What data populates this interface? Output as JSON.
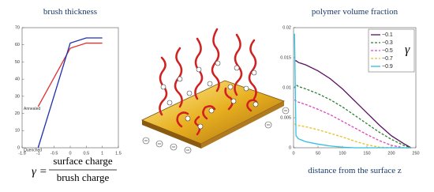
{
  "chart_data": [
    {
      "type": "line",
      "title": "brush thickness",
      "x": [
        -1,
        0,
        0.5,
        1
      ],
      "series": [
        {
          "name": "Annealed",
          "color": "#e03030",
          "values": [
            24,
            58,
            61,
            61
          ]
        },
        {
          "name": "Quenched",
          "color": "#2030b0",
          "values": [
            0,
            61,
            64,
            64
          ]
        }
      ],
      "xlim": [
        -1.5,
        1.5
      ],
      "xticks": [
        -1.5,
        -1,
        -0.5,
        0,
        0.5,
        1,
        1.5
      ],
      "ylim": [
        0,
        70
      ],
      "yticks": [
        0,
        10,
        20,
        30,
        40,
        50,
        60,
        70
      ]
    },
    {
      "type": "line",
      "title": "polymer volume fraction",
      "x_label": "distance from the surface z",
      "x": [
        2,
        5,
        10,
        25,
        50,
        75,
        100,
        125,
        150,
        175,
        200,
        225,
        240
      ],
      "series": [
        {
          "name": "−0.1",
          "color": "#5a1060",
          "style": "solid",
          "values": [
            0.0145,
            0.0145,
            0.0142,
            0.0138,
            0.0128,
            0.0115,
            0.0098,
            0.0078,
            0.0058,
            0.0038,
            0.002,
            0.0007,
            0
          ]
        },
        {
          "name": "−0.3",
          "color": "#2a8030",
          "style": "dashed",
          "values": [
            0.01,
            0.0105,
            0.0102,
            0.0098,
            0.009,
            0.008,
            0.0068,
            0.0054,
            0.004,
            0.0026,
            0.0014,
            0.0004,
            0
          ]
        },
        {
          "name": "−0.5",
          "color": "#e040c0",
          "style": "dashed",
          "values": [
            0.008,
            0.0078,
            0.0076,
            0.0072,
            0.0064,
            0.0055,
            0.0044,
            0.0033,
            0.0022,
            0.0012,
            0.0004,
            0,
            0
          ]
        },
        {
          "name": "−0.7",
          "color": "#e8c020",
          "style": "dashed",
          "values": [
            0.004,
            0.0038,
            0.0037,
            0.0035,
            0.003,
            0.0024,
            0.0018,
            0.0011,
            0.0005,
            0.0001,
            0,
            0,
            0
          ]
        },
        {
          "name": "−0.9",
          "color": "#30c0e0",
          "style": "solid",
          "values": [
            0.019,
            0.002,
            0.0015,
            0.001,
            0.0006,
            0.0003,
            0.0001,
            0,
            0,
            0,
            0,
            0,
            0
          ]
        }
      ],
      "legend": "upper right",
      "legend_title": "γ",
      "xlim": [
        0,
        250
      ],
      "xticks": [
        0,
        50,
        100,
        150,
        200,
        250
      ],
      "ylim": [
        0,
        0.02
      ],
      "yticks": [
        0,
        0.005,
        0.01,
        0.015,
        0.02
      ]
    }
  ],
  "formula": {
    "lhs": "γ =",
    "numerator": "surface charge",
    "denominator": "brush charge"
  }
}
